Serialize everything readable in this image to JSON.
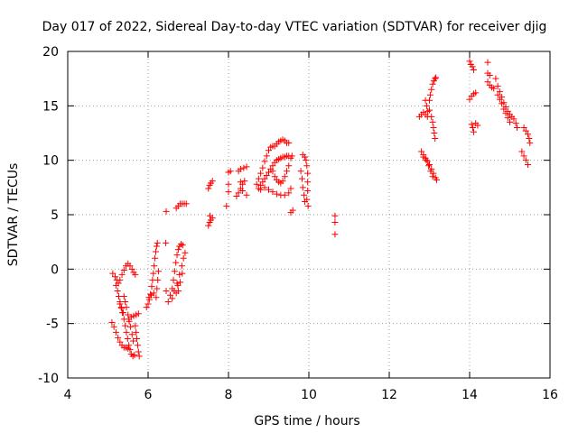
{
  "chart_data": {
    "type": "scatter",
    "title": "Day 017 of 2022, Sidereal Day-to-day VTEC variation (SDTVAR) for receiver djig",
    "xlabel": "GPS time / hours",
    "ylabel": "SDTVAR / TECUs",
    "xlim": [
      4,
      16
    ],
    "ylim": [
      -10,
      20
    ],
    "x_ticks": [
      "4",
      "6",
      "8",
      "10",
      "12",
      "14",
      "16"
    ],
    "y_ticks": [
      "-10",
      "-5",
      "0",
      "5",
      "10",
      "15",
      "20"
    ],
    "grid": true,
    "legend": "none",
    "marker": "+",
    "color": "#ff0000",
    "series": [
      {
        "points": [
          [
            5.12,
            -0.4
          ],
          [
            5.18,
            -0.7
          ],
          [
            5.22,
            -1.0
          ],
          [
            5.26,
            -1.3
          ],
          [
            5.3,
            -1.0
          ],
          [
            5.35,
            -0.5
          ],
          [
            5.4,
            -0.1
          ],
          [
            5.45,
            0.3
          ],
          [
            5.5,
            0.5
          ],
          [
            5.55,
            0.3
          ],
          [
            5.6,
            0.0
          ],
          [
            5.64,
            -0.3
          ],
          [
            5.68,
            -0.5
          ],
          [
            5.2,
            -1.5
          ],
          [
            5.24,
            -2.0
          ],
          [
            5.27,
            -2.5
          ],
          [
            5.3,
            -3.0
          ],
          [
            5.33,
            -3.5
          ],
          [
            5.36,
            -4.0
          ],
          [
            5.4,
            -4.6
          ],
          [
            5.43,
            -5.2
          ],
          [
            5.46,
            -5.8
          ],
          [
            5.49,
            -6.4
          ],
          [
            5.52,
            -7.0
          ],
          [
            5.55,
            -7.4
          ],
          [
            5.58,
            -7.8
          ],
          [
            5.62,
            -8.0
          ],
          [
            5.66,
            -7.9
          ],
          [
            5.4,
            -2.5
          ],
          [
            5.43,
            -3.0
          ],
          [
            5.46,
            -3.5
          ],
          [
            5.5,
            -4.2
          ],
          [
            5.53,
            -4.8
          ],
          [
            5.56,
            -5.3
          ],
          [
            5.6,
            -6.0
          ],
          [
            5.63,
            -6.6
          ],
          [
            5.1,
            -4.9
          ],
          [
            5.15,
            -5.3
          ],
          [
            5.2,
            -5.8
          ],
          [
            5.25,
            -6.3
          ],
          [
            5.3,
            -6.7
          ],
          [
            5.35,
            -7.0
          ],
          [
            5.4,
            -7.2
          ],
          [
            5.45,
            -7.2
          ],
          [
            5.5,
            -7.3
          ],
          [
            5.52,
            -4.6
          ],
          [
            5.58,
            -4.4
          ],
          [
            5.64,
            -4.3
          ],
          [
            5.7,
            -4.2
          ],
          [
            5.76,
            -4.1
          ],
          [
            5.68,
            -5.2
          ],
          [
            5.7,
            -5.8
          ],
          [
            5.72,
            -6.4
          ],
          [
            5.74,
            -7.0
          ],
          [
            5.76,
            -7.6
          ],
          [
            5.78,
            -8.0
          ],
          [
            5.3,
            -3.2
          ],
          [
            5.34,
            -3.6
          ],
          [
            5.38,
            -4.0
          ],
          [
            6.0,
            -3.2
          ],
          [
            6.03,
            -2.8
          ],
          [
            6.06,
            -2.3
          ],
          [
            6.09,
            -1.6
          ],
          [
            6.11,
            -1.0
          ],
          [
            6.13,
            -0.4
          ],
          [
            6.15,
            0.3
          ],
          [
            6.17,
            1.0
          ],
          [
            6.19,
            1.6
          ],
          [
            6.21,
            2.1
          ],
          [
            6.23,
            2.4
          ],
          [
            5.96,
            -3.5
          ],
          [
            6.02,
            -2.6
          ],
          [
            6.08,
            -2.4
          ],
          [
            6.14,
            -2.2
          ],
          [
            6.2,
            -2.6
          ],
          [
            6.22,
            -1.8
          ],
          [
            6.24,
            -1.0
          ],
          [
            6.26,
            -0.2
          ],
          [
            6.44,
            2.4
          ],
          [
            6.45,
            -2.0
          ],
          [
            6.5,
            -3.0
          ],
          [
            6.55,
            -2.4
          ],
          [
            6.6,
            -1.8
          ],
          [
            6.63,
            -1.0
          ],
          [
            6.66,
            -0.2
          ],
          [
            6.69,
            0.6
          ],
          [
            6.72,
            1.3
          ],
          [
            6.75,
            1.8
          ],
          [
            6.78,
            2.1
          ],
          [
            6.82,
            2.3
          ],
          [
            6.86,
            2.2
          ],
          [
            6.6,
            -2.7
          ],
          [
            6.65,
            -2.0
          ],
          [
            6.72,
            -1.3
          ],
          [
            6.78,
            -0.5
          ],
          [
            6.84,
            0.3
          ],
          [
            6.88,
            1.0
          ],
          [
            6.92,
            1.5
          ],
          [
            6.75,
            -2.0
          ],
          [
            6.8,
            -1.2
          ],
          [
            6.85,
            -0.4
          ],
          [
            6.7,
            -2.2
          ],
          [
            6.74,
            -1.5
          ],
          [
            6.45,
            5.3
          ],
          [
            6.7,
            5.6
          ],
          [
            6.75,
            5.8
          ],
          [
            6.8,
            6.0
          ],
          [
            6.85,
            6.0
          ],
          [
            6.9,
            6.0
          ],
          [
            6.95,
            6.0
          ],
          [
            7.5,
            7.4
          ],
          [
            7.53,
            7.7
          ],
          [
            7.56,
            7.9
          ],
          [
            7.6,
            8.1
          ],
          [
            7.5,
            4.0
          ],
          [
            7.53,
            4.3
          ],
          [
            7.56,
            4.5
          ],
          [
            7.6,
            4.7
          ],
          [
            7.54,
            4.9
          ],
          [
            7.95,
            5.8
          ],
          [
            8.0,
            7.1
          ],
          [
            8.0,
            7.8
          ],
          [
            8.0,
            8.9
          ],
          [
            8.05,
            9.0
          ],
          [
            8.2,
            6.7
          ],
          [
            8.25,
            7.0
          ],
          [
            8.3,
            7.4
          ],
          [
            8.35,
            7.8
          ],
          [
            8.4,
            8.1
          ],
          [
            8.3,
            8.0
          ],
          [
            8.35,
            7.2
          ],
          [
            8.45,
            6.8
          ],
          [
            8.25,
            9.0
          ],
          [
            8.3,
            9.2
          ],
          [
            8.38,
            9.3
          ],
          [
            8.45,
            9.4
          ],
          [
            8.7,
            7.8
          ],
          [
            8.75,
            8.3
          ],
          [
            8.8,
            8.8
          ],
          [
            8.85,
            9.3
          ],
          [
            8.9,
            9.9
          ],
          [
            8.95,
            10.4
          ],
          [
            9.0,
            10.9
          ],
          [
            9.05,
            11.2
          ],
          [
            9.1,
            11.3
          ],
          [
            9.15,
            11.3
          ],
          [
            9.2,
            11.5
          ],
          [
            9.25,
            11.7
          ],
          [
            9.3,
            11.8
          ],
          [
            9.35,
            11.9
          ],
          [
            9.4,
            11.8
          ],
          [
            9.45,
            11.6
          ],
          [
            9.5,
            11.6
          ],
          [
            8.75,
            7.4
          ],
          [
            8.8,
            7.7
          ],
          [
            8.85,
            8.0
          ],
          [
            8.9,
            8.3
          ],
          [
            8.95,
            8.6
          ],
          [
            9.0,
            8.9
          ],
          [
            9.05,
            9.2
          ],
          [
            9.1,
            9.5
          ],
          [
            9.15,
            9.8
          ],
          [
            9.2,
            10.0
          ],
          [
            9.25,
            10.1
          ],
          [
            9.3,
            10.2
          ],
          [
            9.35,
            10.3
          ],
          [
            9.4,
            10.3
          ],
          [
            9.45,
            10.4
          ],
          [
            9.5,
            10.4
          ],
          [
            8.8,
            7.3
          ],
          [
            8.9,
            7.5
          ],
          [
            9.0,
            7.3
          ],
          [
            9.1,
            7.1
          ],
          [
            9.2,
            6.9
          ],
          [
            9.3,
            6.8
          ],
          [
            9.4,
            6.8
          ],
          [
            9.5,
            7.0
          ],
          [
            9.55,
            7.4
          ],
          [
            9.1,
            9.0
          ],
          [
            9.15,
            8.5
          ],
          [
            9.2,
            8.2
          ],
          [
            9.25,
            8.0
          ],
          [
            9.3,
            7.9
          ],
          [
            9.35,
            8.1
          ],
          [
            9.4,
            8.5
          ],
          [
            9.45,
            9.0
          ],
          [
            9.5,
            9.5
          ],
          [
            9.55,
            5.2
          ],
          [
            9.6,
            5.4
          ],
          [
            9.55,
            10.2
          ],
          [
            9.58,
            10.4
          ],
          [
            9.85,
            10.5
          ],
          [
            9.9,
            10.3
          ],
          [
            9.93,
            10.0
          ],
          [
            9.95,
            9.5
          ],
          [
            9.97,
            8.8
          ],
          [
            9.97,
            8.0
          ],
          [
            9.97,
            7.2
          ],
          [
            9.95,
            6.4
          ],
          [
            9.98,
            5.8
          ],
          [
            9.8,
            9.0
          ],
          [
            9.83,
            8.3
          ],
          [
            9.85,
            7.5
          ],
          [
            9.88,
            6.8
          ],
          [
            9.9,
            6.2
          ],
          [
            10.65,
            4.9
          ],
          [
            10.65,
            4.3
          ],
          [
            10.65,
            3.2
          ],
          [
            12.75,
            14.0
          ],
          [
            12.8,
            14.2
          ],
          [
            12.85,
            14.4
          ],
          [
            12.9,
            14.2
          ],
          [
            12.95,
            14.0
          ],
          [
            12.9,
            15.5
          ],
          [
            12.93,
            15.0
          ],
          [
            12.96,
            14.5
          ],
          [
            13.0,
            15.5
          ],
          [
            13.02,
            16.0
          ],
          [
            13.05,
            16.5
          ],
          [
            13.08,
            17.0
          ],
          [
            13.11,
            17.3
          ],
          [
            13.14,
            17.5
          ],
          [
            13.16,
            17.6
          ],
          [
            13.0,
            14.6
          ],
          [
            13.05,
            14.0
          ],
          [
            13.08,
            13.5
          ],
          [
            13.1,
            13.0
          ],
          [
            13.12,
            12.5
          ],
          [
            13.14,
            12.0
          ],
          [
            12.8,
            10.8
          ],
          [
            12.85,
            10.5
          ],
          [
            12.9,
            10.2
          ],
          [
            12.95,
            9.9
          ],
          [
            13.0,
            9.6
          ],
          [
            13.05,
            9.2
          ],
          [
            13.1,
            8.8
          ],
          [
            13.15,
            8.4
          ],
          [
            13.18,
            8.2
          ],
          [
            12.85,
            10.3
          ],
          [
            12.92,
            10.0
          ],
          [
            12.98,
            9.5
          ],
          [
            13.03,
            9.0
          ],
          [
            13.08,
            8.5
          ],
          [
            14.0,
            19.1
          ],
          [
            14.03,
            18.8
          ],
          [
            14.07,
            18.6
          ],
          [
            14.1,
            18.3
          ],
          [
            14.0,
            15.6
          ],
          [
            14.05,
            15.9
          ],
          [
            14.1,
            16.1
          ],
          [
            14.15,
            16.2
          ],
          [
            14.05,
            13.3
          ],
          [
            14.08,
            13.0
          ],
          [
            14.1,
            12.6
          ],
          [
            14.15,
            13.4
          ],
          [
            14.2,
            13.2
          ],
          [
            14.45,
            19.0
          ],
          [
            14.45,
            18.0
          ],
          [
            14.5,
            17.8
          ],
          [
            14.45,
            17.2
          ],
          [
            14.5,
            16.9
          ],
          [
            14.55,
            16.7
          ],
          [
            14.6,
            16.6
          ],
          [
            14.65,
            17.5
          ],
          [
            14.7,
            16.8
          ],
          [
            14.75,
            16.3
          ],
          [
            14.8,
            15.8
          ],
          [
            14.85,
            15.3
          ],
          [
            14.9,
            14.9
          ],
          [
            14.95,
            14.5
          ],
          [
            15.0,
            14.2
          ],
          [
            15.05,
            14.0
          ],
          [
            15.1,
            13.8
          ],
          [
            15.15,
            13.4
          ],
          [
            15.18,
            13.0
          ],
          [
            14.7,
            16.0
          ],
          [
            14.75,
            15.6
          ],
          [
            14.8,
            15.2
          ],
          [
            14.85,
            14.7
          ],
          [
            14.9,
            14.3
          ],
          [
            14.95,
            13.9
          ],
          [
            15.0,
            13.5
          ],
          [
            15.35,
            13.0
          ],
          [
            15.4,
            12.7
          ],
          [
            15.45,
            12.4
          ],
          [
            15.48,
            12.0
          ],
          [
            15.5,
            11.6
          ],
          [
            15.3,
            10.8
          ],
          [
            15.35,
            10.4
          ],
          [
            15.4,
            10.0
          ],
          [
            15.45,
            9.6
          ]
        ]
      }
    ]
  }
}
